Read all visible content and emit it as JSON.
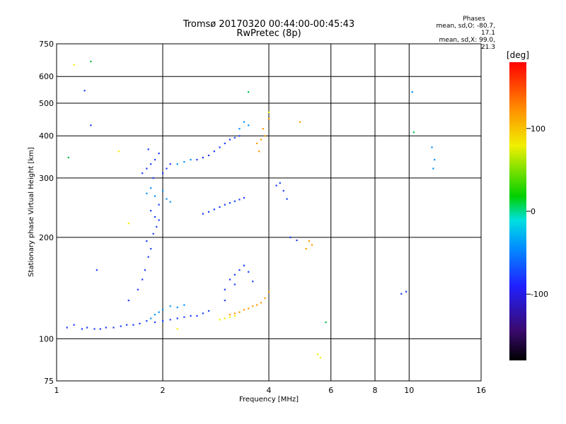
{
  "header": {
    "title_line1": "Tromsø 20170320 00:44:00-00:45:43",
    "title_line2": "RwPretec (8p)",
    "phases_label": "Phases",
    "mean_o": "mean, sd,O: -80.7, 17.1",
    "mean_x": "mean, sd,X:  99.0, 21.3"
  },
  "chart_data": {
    "type": "scatter",
    "title": "Tromsø 20170320 00:44:00-00:45:43",
    "subtitle": "RwPretec (8p)",
    "xlabel": "Frequency [MHz]",
    "ylabel": "Stationary phase Virtual Height [km]",
    "x_scale": "log",
    "y_scale": "log",
    "xlim": [
      1,
      16
    ],
    "ylim": [
      75,
      750
    ],
    "x_ticks": [
      1,
      2,
      4,
      6,
      8,
      10,
      16
    ],
    "x_tick_labels": [
      "1",
      "2",
      "4",
      "6",
      "8",
      "10",
      "16"
    ],
    "x_grid": [
      2,
      4,
      6,
      8,
      10
    ],
    "y_ticks": [
      75,
      100,
      200,
      300,
      400,
      500,
      600,
      750
    ],
    "y_tick_labels": [
      "75",
      "100",
      "200",
      "300",
      "400",
      "500",
      "600",
      "750"
    ],
    "y_grid": [
      100,
      200,
      300,
      400,
      500,
      600
    ],
    "grid": true,
    "colorbar": {
      "unit": "[deg]",
      "range": [
        -180,
        180
      ],
      "ticks": [
        100,
        0,
        -100
      ],
      "tick_labels": [
        "100",
        "0",
        "-100"
      ],
      "colors": [
        "#000000",
        "#3a0a6e",
        "#2020ff",
        "#0090ff",
        "#00e0e0",
        "#00d000",
        "#f0f000",
        "#ff9000",
        "#ff0000"
      ]
    },
    "series": [
      {
        "phase": -100,
        "color": "#1a3cff",
        "points": [
          [
            1.07,
            108
          ],
          [
            1.12,
            110
          ],
          [
            1.18,
            107
          ],
          [
            1.22,
            108
          ],
          [
            1.28,
            107
          ],
          [
            1.33,
            107
          ],
          [
            1.38,
            108
          ],
          [
            1.45,
            108
          ],
          [
            1.52,
            109
          ],
          [
            1.58,
            110
          ],
          [
            1.65,
            110
          ],
          [
            1.72,
            111
          ],
          [
            1.8,
            113
          ],
          [
            1.9,
            112
          ],
          [
            2.0,
            113
          ],
          [
            2.1,
            114
          ],
          [
            2.2,
            115
          ],
          [
            2.3,
            116
          ],
          [
            2.4,
            117
          ],
          [
            2.5,
            117
          ],
          [
            2.6,
            119
          ],
          [
            2.7,
            121
          ],
          [
            1.7,
            140
          ],
          [
            1.75,
            150
          ],
          [
            1.78,
            160
          ],
          [
            1.82,
            175
          ],
          [
            1.85,
            185
          ],
          [
            1.8,
            195
          ],
          [
            1.88,
            205
          ],
          [
            1.92,
            215
          ],
          [
            1.95,
            225
          ],
          [
            1.9,
            230
          ],
          [
            1.85,
            240
          ],
          [
            1.95,
            250
          ],
          [
            1.75,
            310
          ],
          [
            1.8,
            320
          ],
          [
            1.85,
            330
          ],
          [
            1.9,
            340
          ],
          [
            1.95,
            355
          ],
          [
            1.82,
            365
          ],
          [
            1.88,
            300
          ],
          [
            2.0,
            310
          ],
          [
            2.05,
            320
          ],
          [
            2.1,
            330
          ],
          [
            2.5,
            340
          ],
          [
            2.6,
            345
          ],
          [
            2.7,
            350
          ],
          [
            2.8,
            360
          ],
          [
            2.9,
            370
          ],
          [
            3.0,
            380
          ],
          [
            3.1,
            390
          ],
          [
            3.2,
            395
          ],
          [
            3.3,
            400
          ],
          [
            2.6,
            235
          ],
          [
            2.7,
            238
          ],
          [
            2.8,
            242
          ],
          [
            2.9,
            246
          ],
          [
            3.0,
            250
          ],
          [
            3.1,
            253
          ],
          [
            3.2,
            256
          ],
          [
            3.3,
            259
          ],
          [
            3.4,
            262
          ],
          [
            3.0,
            140
          ],
          [
            3.1,
            150
          ],
          [
            3.2,
            155
          ],
          [
            3.3,
            160
          ],
          [
            3.4,
            165
          ],
          [
            3.5,
            158
          ],
          [
            3.2,
            145
          ],
          [
            3.0,
            130
          ],
          [
            3.6,
            148
          ],
          [
            4.2,
            285
          ],
          [
            4.3,
            290
          ],
          [
            4.4,
            275
          ],
          [
            4.6,
            200
          ],
          [
            4.8,
            196
          ],
          [
            1.3,
            160
          ],
          [
            1.6,
            130
          ],
          [
            9.5,
            136
          ],
          [
            9.8,
            138
          ],
          [
            1.2,
            545
          ],
          [
            1.25,
            430
          ],
          [
            4.5,
            260
          ]
        ]
      },
      {
        "phase": -60,
        "color": "#0090ff",
        "points": [
          [
            1.85,
            115
          ],
          [
            1.9,
            118
          ],
          [
            1.95,
            120
          ],
          [
            2.0,
            122
          ],
          [
            2.1,
            125
          ],
          [
            2.2,
            124
          ],
          [
            2.3,
            126
          ],
          [
            1.8,
            270
          ],
          [
            1.85,
            280
          ],
          [
            1.9,
            265
          ],
          [
            2.0,
            275
          ],
          [
            2.05,
            260
          ],
          [
            2.1,
            255
          ],
          [
            2.2,
            330
          ],
          [
            2.3,
            335
          ],
          [
            2.4,
            340
          ],
          [
            3.3,
            420
          ],
          [
            3.4,
            440
          ],
          [
            3.5,
            430
          ],
          [
            10.2,
            540
          ],
          [
            11.7,
            320
          ],
          [
            11.6,
            370
          ],
          [
            11.8,
            340
          ]
        ]
      },
      {
        "phase": 100,
        "color": "#ff9a00",
        "points": [
          [
            3.1,
            118
          ],
          [
            3.2,
            119
          ],
          [
            3.3,
            120
          ],
          [
            3.4,
            122
          ],
          [
            3.5,
            123
          ],
          [
            3.6,
            125
          ],
          [
            3.7,
            126
          ],
          [
            3.8,
            128
          ],
          [
            3.9,
            132
          ],
          [
            4.0,
            138
          ],
          [
            3.7,
            380
          ],
          [
            3.8,
            390
          ],
          [
            3.9,
            400
          ],
          [
            3.85,
            420
          ],
          [
            4.0,
            450
          ],
          [
            3.75,
            360
          ],
          [
            5.2,
            195
          ],
          [
            5.3,
            190
          ],
          [
            5.1,
            185
          ],
          [
            4.9,
            440
          ]
        ]
      },
      {
        "phase": 80,
        "color": "#f0f000",
        "points": [
          [
            2.9,
            114
          ],
          [
            3.0,
            115
          ],
          [
            3.1,
            116
          ],
          [
            3.2,
            117
          ],
          [
            1.12,
            650
          ],
          [
            4.0,
            470
          ],
          [
            5.5,
            90
          ],
          [
            5.6,
            88
          ],
          [
            1.6,
            220
          ],
          [
            1.5,
            360
          ],
          [
            2.2,
            107
          ]
        ]
      },
      {
        "phase": 20,
        "color": "#00c040",
        "points": [
          [
            1.08,
            345
          ],
          [
            1.25,
            665
          ],
          [
            5.8,
            112
          ],
          [
            10.3,
            410
          ],
          [
            3.5,
            540
          ]
        ]
      }
    ]
  }
}
